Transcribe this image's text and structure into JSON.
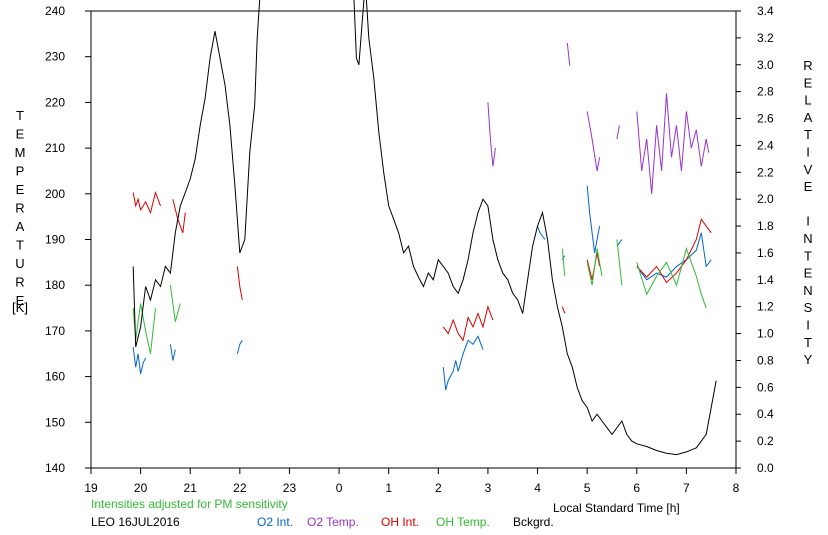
{
  "chart_data": {
    "type": "line",
    "title": "",
    "xlabel": "Local Standard Time [h]",
    "ylabel_left": "TEMPERATURE",
    "ylabel_left_unit": "[K]",
    "ylabel_right": "RELATIVE INTENSITY",
    "xlim": [
      19,
      32
    ],
    "ylim_left": [
      140,
      240
    ],
    "ylim_right": [
      0.0,
      3.4
    ],
    "x_tick_values": [
      19,
      20,
      21,
      22,
      23,
      24,
      25,
      26,
      27,
      28,
      29,
      30,
      31,
      32
    ],
    "x_tick_labels": [
      "19",
      "20",
      "21",
      "22",
      "23",
      "0",
      "1",
      "2",
      "3",
      "4",
      "5",
      "6",
      "7",
      "8"
    ],
    "y_left_ticks": [
      "140",
      "150",
      "160",
      "170",
      "180",
      "190",
      "200",
      "210",
      "220",
      "230",
      "240"
    ],
    "y_right_ticks": [
      "0.0",
      "0.2",
      "0.4",
      "0.6",
      "0.8",
      "1.0",
      "1.2",
      "1.4",
      "1.6",
      "1.8",
      "2.0",
      "2.2",
      "2.4",
      "2.6",
      "2.8",
      "3.0",
      "3.2",
      "3.4"
    ],
    "grid": false,
    "legend_placement": "bottom",
    "note": "Intensities adjusted for PM sensitivity",
    "station_label": "LEO 16JUL2016",
    "series": [
      {
        "name": "O2 Int.",
        "axis": "right",
        "color": "#0066cc",
        "segments": [
          [
            [
              19.85,
              0.9
            ],
            [
              19.9,
              0.75
            ],
            [
              19.95,
              0.85
            ],
            [
              20.0,
              0.7
            ],
            [
              20.05,
              0.78
            ],
            [
              20.1,
              0.82
            ]
          ],
          [
            [
              20.6,
              0.92
            ],
            [
              20.65,
              0.8
            ],
            [
              20.7,
              0.88
            ]
          ],
          [
            [
              21.95,
              0.85
            ],
            [
              22.0,
              0.92
            ],
            [
              22.05,
              0.95
            ]
          ],
          [
            [
              26.1,
              0.75
            ],
            [
              26.15,
              0.58
            ],
            [
              26.2,
              0.65
            ],
            [
              26.3,
              0.72
            ],
            [
              26.35,
              0.8
            ],
            [
              26.4,
              0.72
            ],
            [
              26.5,
              0.85
            ],
            [
              26.6,
              0.95
            ],
            [
              26.7,
              0.92
            ],
            [
              26.8,
              0.98
            ],
            [
              26.9,
              0.88
            ]
          ],
          [
            [
              28.0,
              1.8
            ],
            [
              28.05,
              1.75
            ],
            [
              28.15,
              1.7
            ]
          ],
          [
            [
              28.5,
              1.55
            ],
            [
              28.55,
              1.58
            ]
          ],
          [
            [
              29.0,
              2.1
            ],
            [
              29.05,
              1.9
            ],
            [
              29.1,
              1.75
            ],
            [
              29.15,
              1.6
            ],
            [
              29.2,
              1.7
            ],
            [
              29.25,
              1.8
            ]
          ],
          [
            [
              29.6,
              1.65
            ],
            [
              29.7,
              1.7
            ]
          ],
          [
            [
              30.0,
              1.5
            ],
            [
              30.2,
              1.4
            ],
            [
              30.4,
              1.45
            ],
            [
              30.6,
              1.42
            ],
            [
              30.8,
              1.5
            ],
            [
              31.0,
              1.55
            ],
            [
              31.2,
              1.62
            ],
            [
              31.3,
              1.75
            ],
            [
              31.4,
              1.5
            ],
            [
              31.5,
              1.55
            ]
          ]
        ]
      },
      {
        "name": "O2 Temp.",
        "axis": "left",
        "color": "#9933cc",
        "segments": [
          [
            [
              27.0,
              220
            ],
            [
              27.05,
              212
            ],
            [
              27.1,
              206
            ],
            [
              27.15,
              210
            ]
          ],
          [
            [
              28.6,
              233
            ],
            [
              28.65,
              228
            ]
          ],
          [
            [
              29.0,
              218
            ],
            [
              29.1,
              212
            ],
            [
              29.2,
              205
            ],
            [
              29.25,
              208
            ]
          ],
          [
            [
              29.6,
              212
            ],
            [
              29.65,
              215
            ]
          ],
          [
            [
              30.0,
              218
            ],
            [
              30.1,
              205
            ],
            [
              30.2,
              212
            ],
            [
              30.3,
              200
            ],
            [
              30.4,
              215
            ],
            [
              30.5,
              205
            ],
            [
              30.6,
              222
            ],
            [
              30.7,
              208
            ],
            [
              30.8,
              215
            ],
            [
              30.9,
              205
            ],
            [
              31.0,
              218
            ],
            [
              31.1,
              210
            ],
            [
              31.2,
              214
            ],
            [
              31.3,
              206
            ],
            [
              31.4,
              212
            ],
            [
              31.45,
              209
            ]
          ]
        ]
      },
      {
        "name": "OH Int.",
        "axis": "right",
        "color": "#dd0000",
        "segments": [
          [
            [
              19.85,
              2.05
            ],
            [
              19.9,
              1.95
            ],
            [
              19.95,
              2.0
            ],
            [
              20.0,
              1.92
            ],
            [
              20.1,
              1.98
            ],
            [
              20.2,
              1.9
            ],
            [
              20.3,
              2.05
            ],
            [
              20.4,
              1.95
            ]
          ],
          [
            [
              20.65,
              2.0
            ],
            [
              20.75,
              1.85
            ],
            [
              20.85,
              1.75
            ],
            [
              20.9,
              1.9
            ]
          ],
          [
            [
              21.95,
              1.5
            ],
            [
              22.0,
              1.35
            ],
            [
              22.05,
              1.25
            ]
          ],
          [
            [
              26.1,
              1.05
            ],
            [
              26.2,
              1.0
            ],
            [
              26.3,
              1.1
            ],
            [
              26.4,
              1.0
            ],
            [
              26.5,
              0.95
            ],
            [
              26.6,
              1.12
            ],
            [
              26.7,
              1.05
            ],
            [
              26.8,
              1.15
            ],
            [
              26.9,
              1.05
            ],
            [
              27.0,
              1.2
            ],
            [
              27.1,
              1.1
            ]
          ],
          [
            [
              28.5,
              1.2
            ],
            [
              28.55,
              1.15
            ]
          ],
          [
            [
              29.0,
              1.55
            ],
            [
              29.1,
              1.4
            ],
            [
              29.2,
              1.6
            ],
            [
              29.25,
              1.5
            ]
          ],
          [
            [
              30.0,
              1.5
            ],
            [
              30.2,
              1.42
            ],
            [
              30.4,
              1.5
            ],
            [
              30.6,
              1.38
            ],
            [
              30.8,
              1.45
            ],
            [
              31.0,
              1.55
            ],
            [
              31.2,
              1.7
            ],
            [
              31.3,
              1.85
            ],
            [
              31.4,
              1.8
            ],
            [
              31.5,
              1.75
            ]
          ]
        ]
      },
      {
        "name": "OH Temp.",
        "axis": "left",
        "color": "#33bb33",
        "segments": [
          [
            [
              19.85,
              175
            ],
            [
              19.9,
              168
            ],
            [
              19.95,
              172
            ],
            [
              20.0,
              176
            ],
            [
              20.1,
              170
            ],
            [
              20.2,
              165
            ],
            [
              20.3,
              175
            ]
          ],
          [
            [
              20.6,
              180
            ],
            [
              20.7,
              172
            ],
            [
              20.8,
              176
            ]
          ],
          [
            [
              28.5,
              188
            ],
            [
              28.55,
              182
            ]
          ],
          [
            [
              29.0,
              185
            ],
            [
              29.1,
              180
            ],
            [
              29.2,
              188
            ],
            [
              29.3,
              182
            ]
          ],
          [
            [
              29.6,
              190
            ],
            [
              29.7,
              180
            ]
          ],
          [
            [
              30.0,
              185
            ],
            [
              30.2,
              178
            ],
            [
              30.4,
              182
            ],
            [
              30.6,
              185
            ],
            [
              30.8,
              180
            ],
            [
              31.0,
              188
            ],
            [
              31.2,
              182
            ],
            [
              31.3,
              178
            ],
            [
              31.4,
              175
            ]
          ]
        ]
      },
      {
        "name": "Bckgrd.",
        "axis": "right",
        "color": "#000000",
        "segments": [
          [
            [
              19.85,
              1.5
            ],
            [
              19.9,
              0.9
            ],
            [
              20.0,
              1.05
            ],
            [
              20.1,
              1.35
            ],
            [
              20.2,
              1.25
            ],
            [
              20.3,
              1.4
            ],
            [
              20.4,
              1.35
            ],
            [
              20.5,
              1.5
            ],
            [
              20.6,
              1.45
            ],
            [
              20.7,
              1.75
            ],
            [
              20.8,
              1.95
            ],
            [
              20.9,
              2.05
            ],
            [
              21.0,
              2.15
            ],
            [
              21.1,
              2.3
            ],
            [
              21.2,
              2.55
            ],
            [
              21.3,
              2.75
            ],
            [
              21.4,
              3.05
            ],
            [
              21.5,
              3.25
            ],
            [
              21.6,
              3.05
            ],
            [
              21.7,
              2.85
            ],
            [
              21.8,
              2.55
            ],
            [
              21.9,
              2.1
            ],
            [
              22.0,
              1.6
            ],
            [
              22.1,
              1.7
            ],
            [
              22.2,
              2.35
            ],
            [
              22.3,
              2.7
            ],
            [
              22.35,
              3.2
            ],
            [
              22.4,
              3.5
            ]
          ],
          [
            [
              24.3,
              3.5
            ],
            [
              24.35,
              3.05
            ],
            [
              24.4,
              3.0
            ],
            [
              24.5,
              3.5
            ]
          ],
          [
            [
              24.55,
              3.5
            ],
            [
              24.6,
              3.2
            ],
            [
              24.7,
              2.9
            ],
            [
              24.8,
              2.5
            ],
            [
              24.9,
              2.2
            ],
            [
              25.0,
              1.95
            ],
            [
              25.1,
              1.85
            ],
            [
              25.2,
              1.75
            ],
            [
              25.3,
              1.6
            ],
            [
              25.4,
              1.65
            ],
            [
              25.5,
              1.5
            ],
            [
              25.6,
              1.42
            ],
            [
              25.7,
              1.35
            ],
            [
              25.8,
              1.45
            ],
            [
              25.9,
              1.4
            ],
            [
              26.0,
              1.55
            ],
            [
              26.1,
              1.5
            ],
            [
              26.2,
              1.45
            ],
            [
              26.3,
              1.35
            ],
            [
              26.4,
              1.3
            ],
            [
              26.5,
              1.4
            ],
            [
              26.6,
              1.55
            ],
            [
              26.7,
              1.75
            ],
            [
              26.8,
              1.9
            ],
            [
              26.9,
              2.0
            ],
            [
              27.0,
              1.95
            ],
            [
              27.1,
              1.7
            ],
            [
              27.2,
              1.55
            ],
            [
              27.3,
              1.45
            ],
            [
              27.4,
              1.4
            ],
            [
              27.5,
              1.3
            ],
            [
              27.6,
              1.25
            ],
            [
              27.7,
              1.15
            ],
            [
              27.8,
              1.4
            ],
            [
              27.9,
              1.65
            ],
            [
              28.0,
              1.8
            ],
            [
              28.1,
              1.9
            ],
            [
              28.2,
              1.7
            ],
            [
              28.3,
              1.4
            ],
            [
              28.4,
              1.2
            ],
            [
              28.5,
              1.05
            ],
            [
              28.6,
              0.85
            ],
            [
              28.7,
              0.75
            ],
            [
              28.8,
              0.6
            ],
            [
              28.9,
              0.5
            ],
            [
              29.0,
              0.45
            ],
            [
              29.1,
              0.35
            ],
            [
              29.2,
              0.4
            ],
            [
              29.3,
              0.35
            ],
            [
              29.4,
              0.3
            ],
            [
              29.5,
              0.25
            ],
            [
              29.6,
              0.3
            ],
            [
              29.7,
              0.35
            ],
            [
              29.8,
              0.25
            ],
            [
              29.9,
              0.2
            ],
            [
              30.0,
              0.18
            ],
            [
              30.2,
              0.16
            ],
            [
              30.4,
              0.13
            ],
            [
              30.6,
              0.11
            ],
            [
              30.8,
              0.1
            ],
            [
              31.0,
              0.12
            ],
            [
              31.2,
              0.15
            ],
            [
              31.4,
              0.25
            ],
            [
              31.5,
              0.45
            ],
            [
              31.6,
              0.65
            ]
          ]
        ]
      }
    ]
  }
}
